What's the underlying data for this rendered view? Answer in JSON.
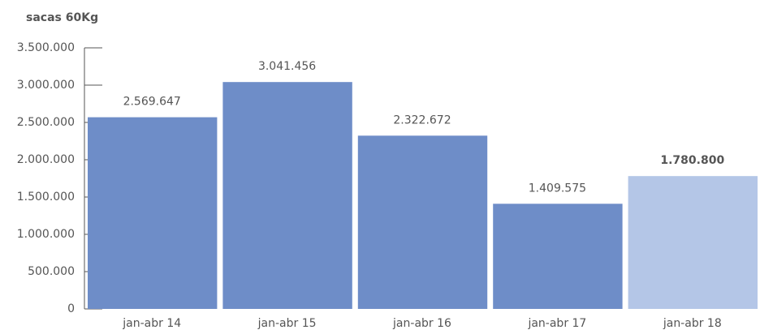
{
  "chart_data": {
    "type": "bar",
    "y_axis_label": "sacas 60Kg",
    "categories": [
      "jan-abr 14",
      "jan-abr 15",
      "jan-abr 16",
      "jan-abr 17",
      "jan-abr 18"
    ],
    "values": [
      2569647,
      3041456,
      2322672,
      1409575,
      1780800
    ],
    "value_labels": [
      "2.569.647",
      "3.041.456",
      "2.322.672",
      "1.409.575",
      "1.780.800"
    ],
    "colors": [
      "#6e8dc8",
      "#6e8dc8",
      "#6e8dc8",
      "#6e8dc8",
      "#b4c6e7"
    ],
    "ylim": [
      0,
      3500000
    ],
    "yticks": [
      0,
      {
        "value": 500000,
        "label": "500.000"
      },
      {
        "value": 1000000,
        "label": "1.000.000"
      },
      {
        "value": 1500000,
        "label": "1.500.000"
      },
      {
        "value": 2000000,
        "label": "2.000.000"
      },
      {
        "value": 2500000,
        "label": "2.500.000"
      },
      {
        "value": 3000000,
        "label": "3.000.000"
      },
      {
        "value": 3500000,
        "label": "3.500.000"
      }
    ],
    "grid": false
  }
}
